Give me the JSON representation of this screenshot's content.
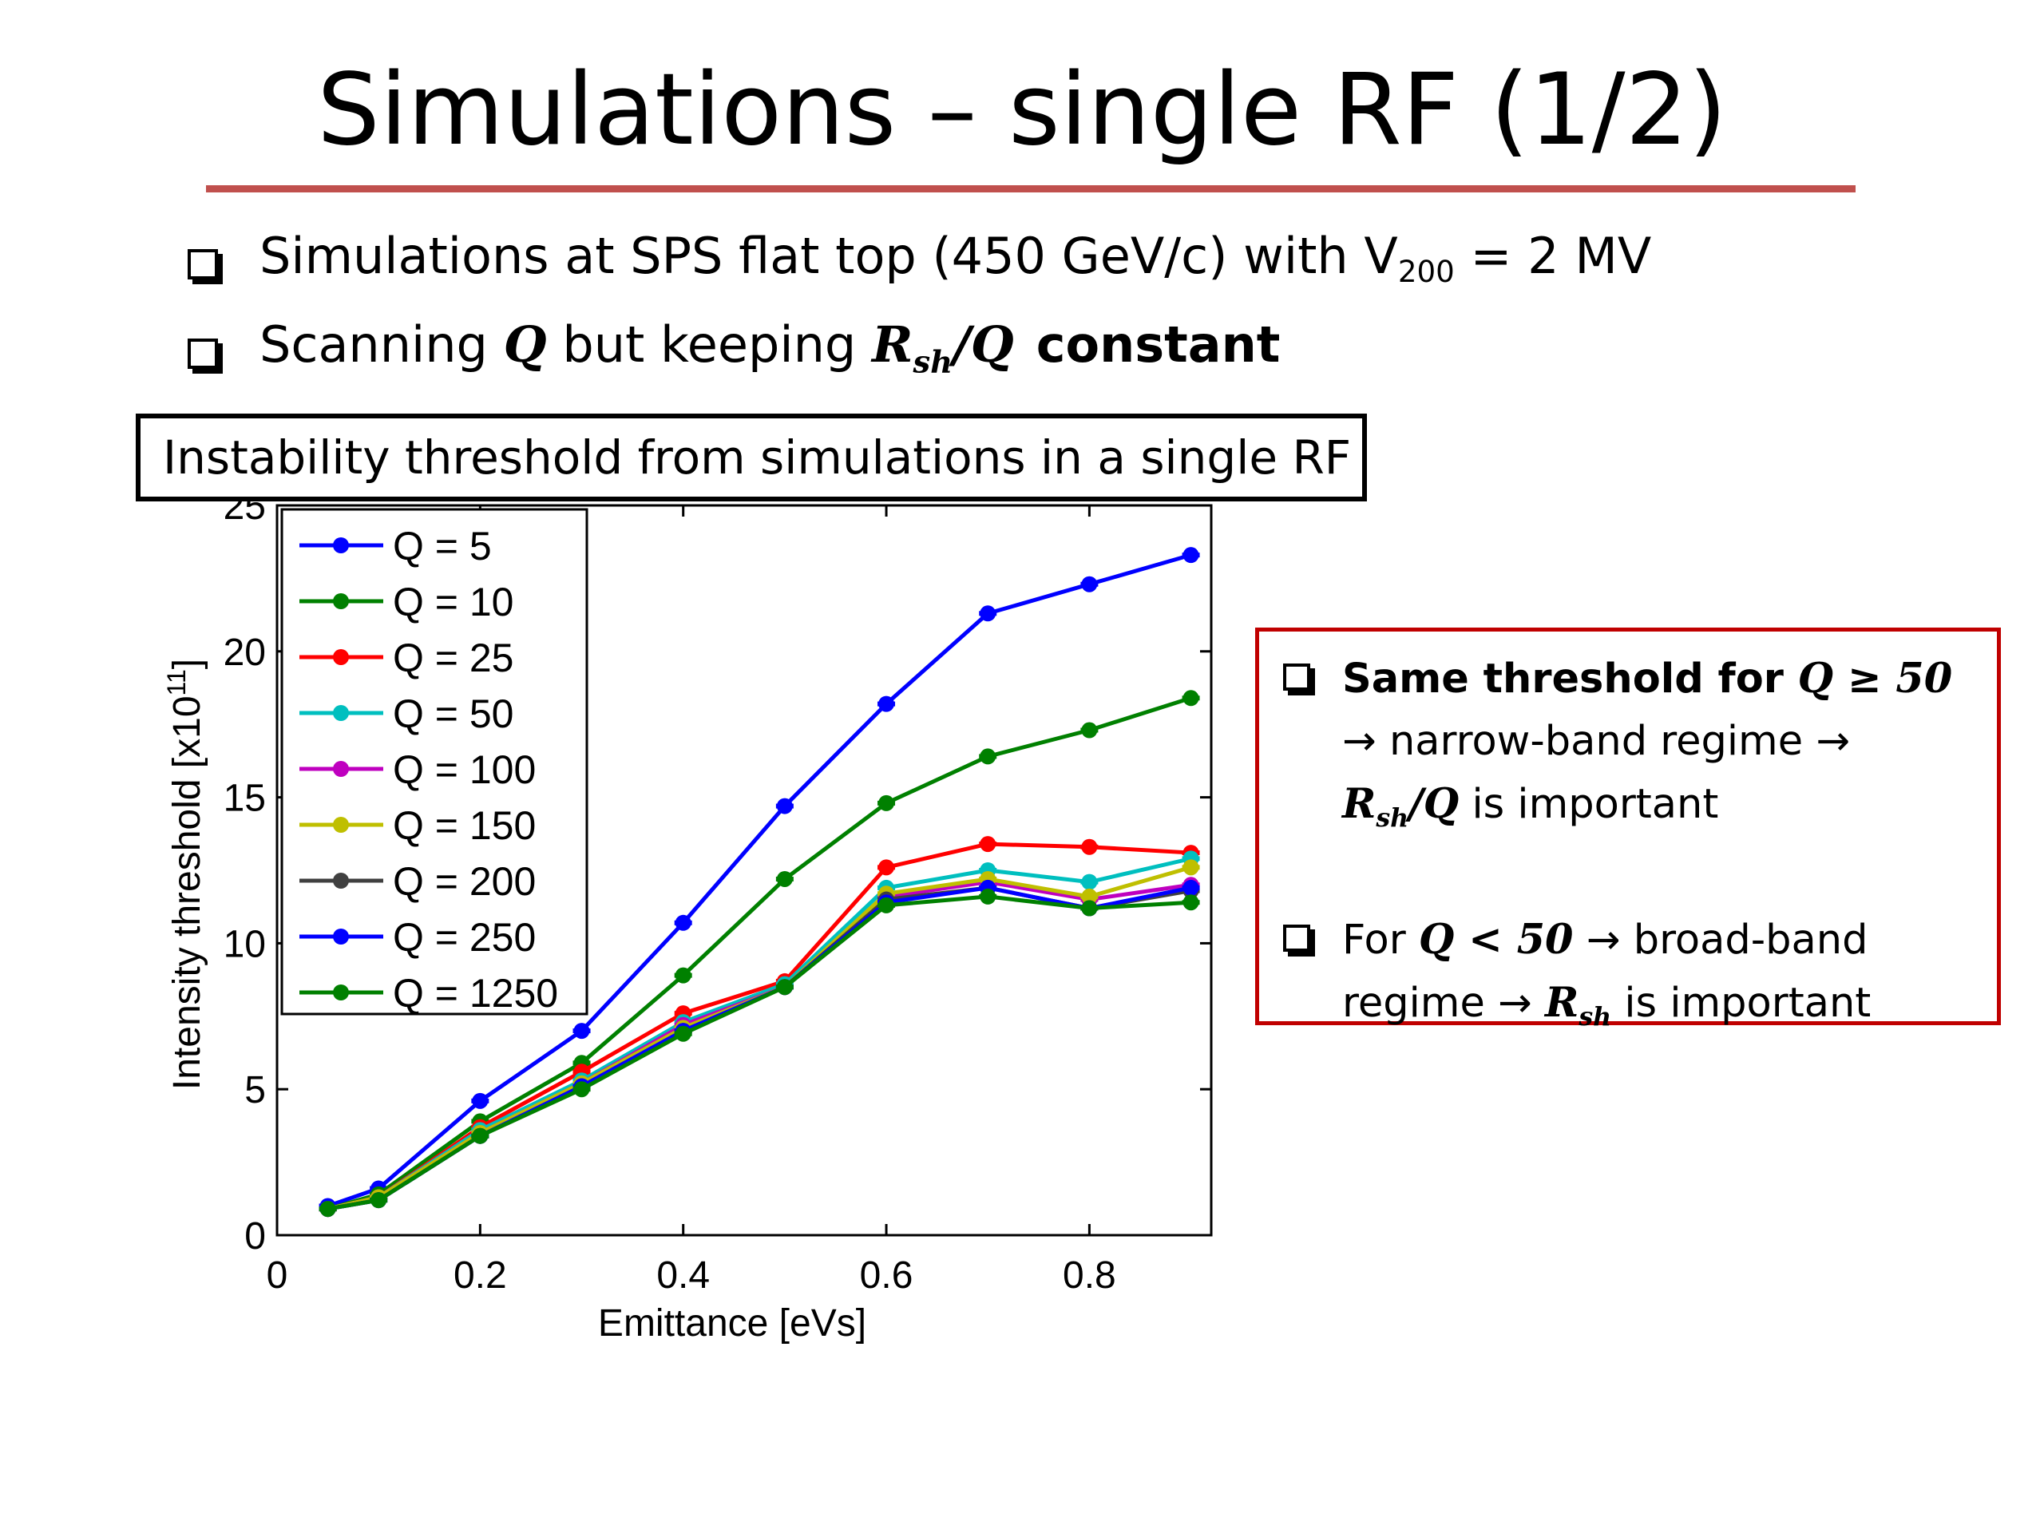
{
  "slide": {
    "title": "Simulations – single RF (1/2)",
    "rule_color": "#c0504d",
    "bullets": [
      {
        "text1": "Simulations at SPS flat top (450 GeV/c) with V",
        "sub": "200",
        "text2": " = 2 MV"
      },
      {
        "text1": "Scanning ",
        "q": "Q",
        "text2": " but keeping ",
        "r": "R",
        "r_sub": "sh",
        "slash_q": "/Q",
        "text3": "constant"
      }
    ]
  },
  "chart_caption": "Instability threshold from simulations in a single RF",
  "callout": {
    "border_color": "#c00000",
    "item1": {
      "bold_text": "Same threshold for ",
      "cond": "Q ≥ 50",
      "line2": "→ narrow-band regime →",
      "r": "R",
      "r_sub": "sh",
      "slash_q": "/Q",
      "line3_rest": " is important"
    },
    "item2": {
      "text1": "For ",
      "cond": "Q < 50",
      "text2": " → broad-band",
      "text3": "regime → ",
      "r": "R",
      "r_sub": "sh",
      "text4": " is important"
    }
  },
  "chart_data": {
    "type": "line",
    "title": "",
    "xlabel": "Emittance [eVs]",
    "ylabel": "Intensity threshold [x10",
    "ylabel_exp": "11",
    "ylabel_end": "]",
    "xlim": [
      0,
      0.92
    ],
    "ylim": [
      0,
      25
    ],
    "xticks": [
      0,
      0.2,
      0.4,
      0.6,
      0.8
    ],
    "xtick_labels": [
      "0",
      "0.2",
      "0.4",
      "0.6",
      "0.8"
    ],
    "yticks": [
      0,
      5,
      10,
      15,
      20,
      25
    ],
    "ytick_labels": [
      "0",
      "5",
      "10",
      "15",
      "20",
      "25"
    ],
    "grid": false,
    "legend_position": "top-left",
    "x": [
      0.05,
      0.1,
      0.2,
      0.3,
      0.4,
      0.5,
      0.6,
      0.7,
      0.8,
      0.9
    ],
    "series": [
      {
        "name": "Q = 5",
        "color": "#0000ff",
        "values": [
          1.0,
          1.6,
          4.6,
          7.0,
          10.7,
          14.7,
          18.2,
          21.3,
          22.3,
          23.3
        ]
      },
      {
        "name": "Q = 10",
        "color": "#008000",
        "values": [
          0.9,
          1.4,
          3.9,
          5.9,
          8.9,
          12.2,
          14.8,
          16.4,
          17.3,
          18.4
        ]
      },
      {
        "name": "Q = 25",
        "color": "#ff0000",
        "values": [
          0.9,
          1.3,
          3.7,
          5.6,
          7.6,
          8.7,
          12.6,
          13.4,
          13.3,
          13.1
        ]
      },
      {
        "name": "Q = 50",
        "color": "#00bfbf",
        "values": [
          0.9,
          1.3,
          3.6,
          5.3,
          7.3,
          8.6,
          11.9,
          12.5,
          12.1,
          12.9
        ]
      },
      {
        "name": "Q = 100",
        "color": "#bf00bf",
        "values": [
          0.9,
          1.3,
          3.5,
          5.2,
          7.2,
          8.5,
          11.6,
          12.1,
          11.5,
          12.0
        ]
      },
      {
        "name": "Q = 150",
        "color": "#bfbf00",
        "values": [
          0.9,
          1.3,
          3.5,
          5.2,
          7.1,
          8.5,
          11.7,
          12.2,
          11.6,
          12.6
        ]
      },
      {
        "name": "Q = 200",
        "color": "#404040",
        "values": [
          0.9,
          1.2,
          3.4,
          5.1,
          7.0,
          8.5,
          11.5,
          11.9,
          11.2,
          11.8
        ]
      },
      {
        "name": "Q = 250",
        "color": "#0000ff",
        "values": [
          0.9,
          1.2,
          3.4,
          5.1,
          7.0,
          8.5,
          11.4,
          11.9,
          11.2,
          11.9
        ]
      },
      {
        "name": "Q = 1250",
        "color": "#008000",
        "values": [
          0.9,
          1.2,
          3.4,
          5.0,
          6.9,
          8.5,
          11.3,
          11.6,
          11.2,
          11.4
        ]
      }
    ]
  }
}
